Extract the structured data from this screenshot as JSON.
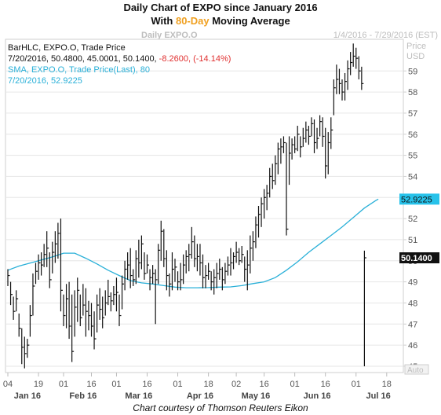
{
  "title_line1": "Daily Chart of EXPO since January 2016",
  "title_line2_pre": "With ",
  "title_line2_hl": "80-Day",
  "title_line2_post": " Moving Average",
  "subtitle": "Daily EXPO.O",
  "date_range": "1/4/2016 - 7/29/2016 (EST)",
  "price_label_1": "Price",
  "price_label_2": "USD",
  "auto_label": "Auto",
  "credit": "Chart courtesy of Thomson Reuters Eikon",
  "colors": {
    "bars": "#111111",
    "sma": "#2ab0d8",
    "last_box": "#111111",
    "sma_box": "#27c2ea",
    "grid": "#e6e6e6",
    "accent": "#f0a020"
  },
  "chart_data": {
    "type": "bar",
    "legend": [
      {
        "text": "BarHLC, EXPO.O, Trade Price",
        "color": "#111111"
      },
      {
        "text": "7/20/2016, 50.4800, 45.0001, 50.1400, ",
        "color": "#111111",
        "tail": "-8.2600, (-14.14%)",
        "tail_color": "#e03030"
      },
      {
        "text": "SMA, EXPO.O, Trade Price(Last), 80",
        "color": "#2ab0d8"
      },
      {
        "text": "7/20/2016, 52.9225",
        "color": "#2ab0d8"
      }
    ],
    "ylim": [
      44.7,
      60.5
    ],
    "y_ticks": [
      45,
      46,
      47,
      48,
      49,
      50,
      51,
      52,
      53,
      54,
      55,
      56,
      57,
      58,
      59
    ],
    "x_day_ticks": [
      {
        "label": "04",
        "day": 0
      },
      {
        "label": "19",
        "day": 11
      },
      {
        "label": "01",
        "day": 20
      },
      {
        "label": "16",
        "day": 30
      },
      {
        "label": "01",
        "day": 39
      },
      {
        "label": "16",
        "day": 50
      },
      {
        "label": "01",
        "day": 61
      },
      {
        "label": "18",
        "day": 72
      },
      {
        "label": "02",
        "day": 82
      },
      {
        "label": "16",
        "day": 92
      },
      {
        "label": "01",
        "day": 103
      },
      {
        "label": "16",
        "day": 114
      },
      {
        "label": "01",
        "day": 125
      },
      {
        "label": "18",
        "day": 136
      }
    ],
    "x_month_labels": [
      {
        "label": "Jan 16",
        "day": 7
      },
      {
        "label": "Feb 16",
        "day": 27
      },
      {
        "label": "Mar 16",
        "day": 47
      },
      {
        "label": "Apr 16",
        "day": 69
      },
      {
        "label": "May 16",
        "day": 89
      },
      {
        "label": "Jun 16",
        "day": 111
      },
      {
        "label": "Jul 16",
        "day": 133
      }
    ],
    "last_price": 50.14,
    "last_price_label": "50.1400",
    "sma_last": 52.9225,
    "sma_last_label": "52.9225",
    "bars": [
      [
        49.6,
        48.8,
        49.3
      ],
      [
        49.0,
        47.9,
        48.4
      ],
      [
        48.3,
        47.2,
        47.6
      ],
      [
        48.6,
        47.6,
        48.2
      ],
      [
        47.5,
        46.4,
        46.8
      ],
      [
        46.8,
        45.1,
        45.9
      ],
      [
        46.4,
        44.9,
        45.6
      ],
      [
        46.3,
        45.4,
        46.0
      ],
      [
        47.9,
        46.4,
        47.4
      ],
      [
        49.4,
        47.4,
        48.8
      ],
      [
        49.9,
        48.9,
        49.5
      ],
      [
        50.3,
        49.1,
        49.9
      ],
      [
        50.4,
        49.3,
        49.8
      ],
      [
        50.8,
        49.7,
        50.3
      ],
      [
        51.4,
        49.7,
        50.6
      ],
      [
        50.4,
        48.7,
        49.1
      ],
      [
        50.9,
        49.4,
        50.4
      ],
      [
        51.4,
        49.9,
        50.8
      ],
      [
        51.8,
        50.1,
        51.3
      ],
      [
        52.0,
        47.6,
        48.6
      ],
      [
        48.4,
        46.9,
        47.4
      ],
      [
        48.9,
        46.8,
        48.2
      ],
      [
        49.0,
        46.3,
        46.9
      ],
      [
        48.4,
        45.2,
        45.7
      ],
      [
        48.6,
        46.4,
        47.8
      ],
      [
        49.2,
        47.1,
        48.6
      ],
      [
        48.4,
        46.9,
        47.3
      ],
      [
        48.9,
        47.4,
        47.9
      ],
      [
        48.7,
        46.4,
        47.6
      ],
      [
        48.1,
        46.7,
        47.4
      ],
      [
        48.0,
        46.4,
        46.9
      ],
      [
        47.6,
        45.8,
        46.3
      ],
      [
        48.4,
        46.6,
        47.9
      ],
      [
        48.7,
        47.2,
        47.7
      ],
      [
        48.3,
        46.8,
        47.3
      ],
      [
        48.6,
        47.4,
        48.0
      ],
      [
        49.1,
        47.9,
        48.3
      ],
      [
        48.5,
        47.6,
        48.1
      ],
      [
        48.8,
        47.9,
        48.4
      ],
      [
        49.2,
        47.6,
        48.5
      ],
      [
        48.4,
        46.9,
        47.4
      ],
      [
        49.3,
        47.7,
        48.9
      ],
      [
        50.0,
        48.6,
        49.6
      ],
      [
        50.4,
        49.1,
        49.8
      ],
      [
        50.6,
        48.7,
        49.3
      ],
      [
        49.6,
        48.8,
        49.1
      ],
      [
        50.5,
        48.9,
        50.1
      ],
      [
        51.0,
        49.2,
        49.9
      ],
      [
        51.2,
        49.6,
        50.8
      ],
      [
        50.4,
        49.1,
        49.4
      ],
      [
        50.3,
        49.4,
        49.8
      ],
      [
        49.6,
        48.6,
        49.2
      ],
      [
        49.8,
        48.9,
        49.4
      ],
      [
        49.6,
        47.0,
        49.1
      ],
      [
        50.8,
        48.9,
        50.5
      ],
      [
        51.9,
        50.0,
        51.4
      ],
      [
        51.5,
        49.7,
        50.1
      ],
      [
        50.5,
        48.6,
        49.3
      ],
      [
        49.4,
        48.3,
        48.9
      ],
      [
        50.4,
        48.6,
        49.6
      ],
      [
        50.1,
        49.0,
        49.7
      ],
      [
        49.5,
        48.6,
        49.0
      ],
      [
        49.9,
        48.6,
        49.1
      ],
      [
        50.3,
        48.9,
        49.8
      ],
      [
        50.5,
        49.4,
        50.2
      ],
      [
        50.8,
        49.5,
        50.3
      ],
      [
        51.6,
        50.1,
        50.9
      ],
      [
        51.2,
        49.7,
        50.1
      ],
      [
        50.8,
        49.5,
        50.2
      ],
      [
        50.8,
        49.3,
        49.9
      ],
      [
        50.3,
        48.7,
        49.2
      ],
      [
        49.8,
        48.7,
        49.3
      ],
      [
        49.9,
        49.1,
        49.5
      ],
      [
        49.5,
        48.6,
        49.0
      ],
      [
        49.6,
        48.4,
        49.2
      ],
      [
        49.9,
        48.7,
        49.4
      ],
      [
        50.1,
        49.1,
        49.6
      ],
      [
        49.7,
        48.6,
        49.1
      ],
      [
        49.9,
        48.9,
        49.5
      ],
      [
        50.2,
        49.3,
        49.8
      ],
      [
        50.6,
        49.3,
        49.9
      ],
      [
        50.4,
        49.6,
        50.2
      ],
      [
        50.9,
        49.9,
        50.4
      ],
      [
        50.6,
        49.8,
        50.0
      ],
      [
        50.7,
        49.9,
        50.3
      ],
      [
        50.2,
        49.0,
        49.6
      ],
      [
        50.5,
        48.6,
        49.8
      ],
      [
        51.2,
        49.4,
        50.6
      ],
      [
        51.4,
        50.0,
        50.9
      ],
      [
        52.1,
        50.6,
        51.7
      ],
      [
        52.6,
        51.1,
        52.2
      ],
      [
        53.0,
        51.6,
        52.7
      ],
      [
        53.4,
        52.0,
        53.0
      ],
      [
        53.6,
        52.4,
        53.2
      ],
      [
        54.4,
        53.0,
        54.0
      ],
      [
        54.6,
        53.4,
        53.8
      ],
      [
        55.0,
        53.6,
        54.6
      ],
      [
        55.6,
        54.1,
        55.3
      ],
      [
        55.8,
        54.6,
        55.4
      ],
      [
        55.9,
        55.1,
        55.6
      ],
      [
        55.6,
        51.2,
        51.5
      ],
      [
        55.9,
        53.6,
        55.1
      ],
      [
        55.8,
        54.8,
        55.5
      ],
      [
        55.9,
        55.1,
        55.3
      ],
      [
        56.4,
        55.2,
        56.0
      ],
      [
        55.9,
        54.9,
        55.4
      ],
      [
        56.3,
        55.4,
        55.8
      ],
      [
        56.6,
        55.6,
        56.2
      ],
      [
        56.4,
        55.5,
        55.9
      ],
      [
        56.8,
        55.9,
        56.5
      ],
      [
        56.7,
        55.1,
        55.6
      ],
      [
        56.3,
        55.3,
        55.8
      ],
      [
        56.9,
        55.9,
        56.6
      ],
      [
        56.8,
        55.4,
        55.9
      ],
      [
        56.3,
        53.9,
        54.5
      ],
      [
        56.1,
        54.1,
        55.6
      ],
      [
        56.8,
        55.3,
        56.2
      ],
      [
        58.6,
        56.9,
        58.2
      ],
      [
        59.3,
        57.9,
        58.6
      ],
      [
        59.1,
        57.9,
        58.4
      ],
      [
        58.6,
        57.6,
        58.0
      ],
      [
        58.9,
        57.6,
        58.5
      ],
      [
        59.5,
        58.1,
        59.1
      ],
      [
        59.9,
        58.8,
        59.4
      ],
      [
        60.3,
        59.2,
        59.7
      ],
      [
        60.1,
        59.1,
        59.6
      ],
      [
        59.7,
        58.6,
        59.0
      ],
      [
        59.2,
        58.1,
        58.4
      ],
      [
        50.48,
        45.0,
        50.14
      ]
    ],
    "sma": [
      [
        0,
        49.55
      ],
      [
        4,
        49.75
      ],
      [
        10,
        49.96
      ],
      [
        16,
        50.18
      ],
      [
        20,
        50.36
      ],
      [
        24,
        50.36
      ],
      [
        28,
        50.12
      ],
      [
        32,
        49.85
      ],
      [
        36,
        49.55
      ],
      [
        40,
        49.3
      ],
      [
        44,
        49.06
      ],
      [
        48,
        48.95
      ],
      [
        52,
        48.9
      ],
      [
        56,
        48.82
      ],
      [
        60,
        48.75
      ],
      [
        64,
        48.72
      ],
      [
        68,
        48.72
      ],
      [
        72,
        48.73
      ],
      [
        76,
        48.75
      ],
      [
        80,
        48.76
      ],
      [
        84,
        48.82
      ],
      [
        88,
        48.92
      ],
      [
        92,
        49.0
      ],
      [
        96,
        49.2
      ],
      [
        100,
        49.55
      ],
      [
        104,
        49.95
      ],
      [
        108,
        50.4
      ],
      [
        112,
        50.8
      ],
      [
        116,
        51.2
      ],
      [
        120,
        51.6
      ],
      [
        124,
        52.05
      ],
      [
        128,
        52.5
      ],
      [
        132,
        52.85
      ],
      [
        133,
        52.9225
      ]
    ]
  }
}
